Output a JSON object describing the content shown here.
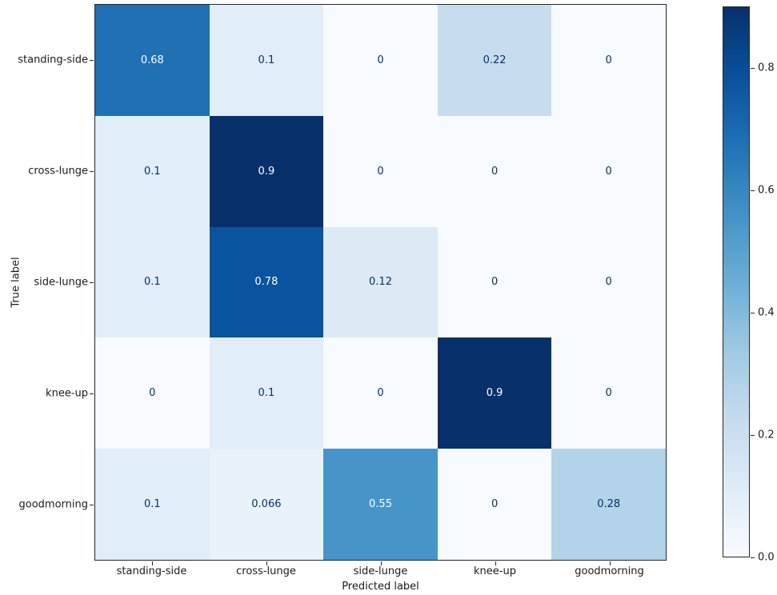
{
  "figure": {
    "background": "#ffffff",
    "frame_color": "#262626",
    "text_color": "#1a1a1a"
  },
  "chart_data": {
    "type": "heatmap",
    "subtype": "confusion-matrix",
    "title": "",
    "xlabel": "Predicted label",
    "ylabel": "True label",
    "categories": [
      "standing-side",
      "cross-lunge",
      "side-lunge",
      "knee-up",
      "goodmorning"
    ],
    "rows": [
      {
        "label": "standing-side",
        "values": [
          0.68,
          0.1,
          0,
          0.22,
          0
        ],
        "cell_labels": [
          "0.68",
          "0.1",
          "0",
          "0.22",
          "0"
        ]
      },
      {
        "label": "cross-lunge",
        "values": [
          0.1,
          0.9,
          0,
          0,
          0
        ],
        "cell_labels": [
          "0.1",
          "0.9",
          "0",
          "0",
          "0"
        ]
      },
      {
        "label": "side-lunge",
        "values": [
          0.1,
          0.78,
          0.12,
          0,
          0
        ],
        "cell_labels": [
          "0.1",
          "0.78",
          "0.12",
          "0",
          "0"
        ]
      },
      {
        "label": "knee-up",
        "values": [
          0,
          0.1,
          0,
          0.9,
          0
        ],
        "cell_labels": [
          "0",
          "0.1",
          "0",
          "0.9",
          "0"
        ]
      },
      {
        "label": "goodmorning",
        "values": [
          0.1,
          0.066,
          0.55,
          0,
          0.28
        ],
        "cell_labels": [
          "0.1",
          "0.066",
          "0.55",
          "0",
          "0.28"
        ]
      }
    ],
    "vmin": 0,
    "vmax": 0.9,
    "colormap_name": "Blues",
    "colormap_stops": [
      "#f7fbff",
      "#deebf7",
      "#c6dbef",
      "#9ecae1",
      "#6baed6",
      "#4292c6",
      "#2171b5",
      "#08519c",
      "#08306b"
    ],
    "cell_text_colors": {
      "light": "#ffffff",
      "dark": "#08306b"
    },
    "colorbar": {
      "tick_labels": [
        "0.0",
        "0.2",
        "0.4",
        "0.6",
        "0.8"
      ],
      "tick_values": [
        0.0,
        0.2,
        0.4,
        0.6,
        0.8
      ],
      "position": "right"
    },
    "grid": false,
    "legend": "none"
  }
}
